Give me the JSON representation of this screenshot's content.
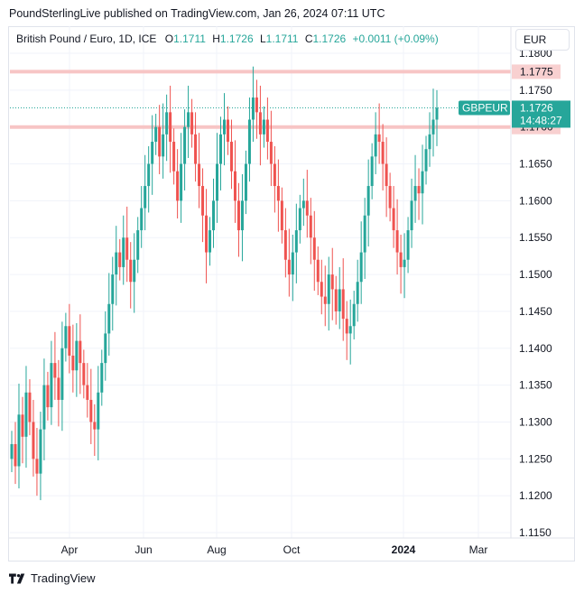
{
  "header": {
    "published_by": "PoundSterlingLive published on TradingView.com, Jan 26, 2024 07:11 UTC"
  },
  "legend": {
    "symbol": "British Pound / Euro, 1D, ICE",
    "o_label": "O",
    "o_value": "1.1711",
    "h_label": "H",
    "h_value": "1.1726",
    "l_label": "L",
    "l_value": "1.1711",
    "c_label": "C",
    "c_value": "1.1726",
    "change": "+0.0011 (+0.09%)"
  },
  "currency_button": "EUR",
  "price_tag": {
    "symbol": "GBPEUR",
    "price": "1.1726",
    "countdown": "14:48:27"
  },
  "footer": {
    "brand": "TradingView"
  },
  "colors": {
    "up": "#26a69a",
    "down": "#ef5350",
    "level_line": "#f7c5c5",
    "level_tag": "#f8d0d0",
    "grid": "#f0f3fa"
  },
  "chart_data": {
    "type": "candlestick",
    "symbol": "GBPEUR",
    "x_axis": {
      "tick_labels": [
        "Apr",
        "Jun",
        "Aug",
        "Oct",
        "2024",
        "Mar"
      ]
    },
    "y_axis": {
      "range": [
        1.115,
        1.18
      ],
      "tick_labels": [
        "1.1800",
        "1.1750",
        "1.1700",
        "1.1650",
        "1.1600",
        "1.1550",
        "1.1500",
        "1.1450",
        "1.1400",
        "1.1350",
        "1.1300",
        "1.1250",
        "1.1200",
        "1.1150"
      ]
    },
    "horizontal_levels": [
      {
        "price": 1.1775,
        "label": "1.1775"
      },
      {
        "price": 1.17,
        "label": "1.1700"
      }
    ],
    "last_price": 1.1726,
    "closes": [
      1.127,
      1.124,
      1.131,
      1.128,
      1.134,
      1.13,
      1.125,
      1.123,
      1.129,
      1.135,
      1.132,
      1.138,
      1.136,
      1.133,
      1.14,
      1.143,
      1.139,
      1.137,
      1.141,
      1.138,
      1.135,
      1.133,
      1.13,
      1.129,
      1.134,
      1.138,
      1.142,
      1.146,
      1.15,
      1.153,
      1.151,
      1.155,
      1.152,
      1.149,
      1.152,
      1.156,
      1.159,
      1.162,
      1.165,
      1.168,
      1.17,
      1.166,
      1.169,
      1.172,
      1.168,
      1.164,
      1.16,
      1.165,
      1.17,
      1.172,
      1.169,
      1.165,
      1.162,
      1.158,
      1.153,
      1.156,
      1.16,
      1.165,
      1.169,
      1.171,
      1.168,
      1.164,
      1.16,
      1.156,
      1.16,
      1.165,
      1.171,
      1.174,
      1.172,
      1.169,
      1.171,
      1.168,
      1.165,
      1.162,
      1.16,
      1.156,
      1.152,
      1.15,
      1.153,
      1.156,
      1.159,
      1.16,
      1.158,
      1.155,
      1.152,
      1.149,
      1.147,
      1.146,
      1.15,
      1.148,
      1.145,
      1.148,
      1.144,
      1.142,
      1.143,
      1.146,
      1.149,
      1.153,
      1.158,
      1.162,
      1.166,
      1.169,
      1.168,
      1.165,
      1.162,
      1.159,
      1.156,
      1.153,
      1.151,
      1.152,
      1.156,
      1.16,
      1.162,
      1.161,
      1.164,
      1.167,
      1.169,
      1.171,
      1.1726
    ]
  }
}
